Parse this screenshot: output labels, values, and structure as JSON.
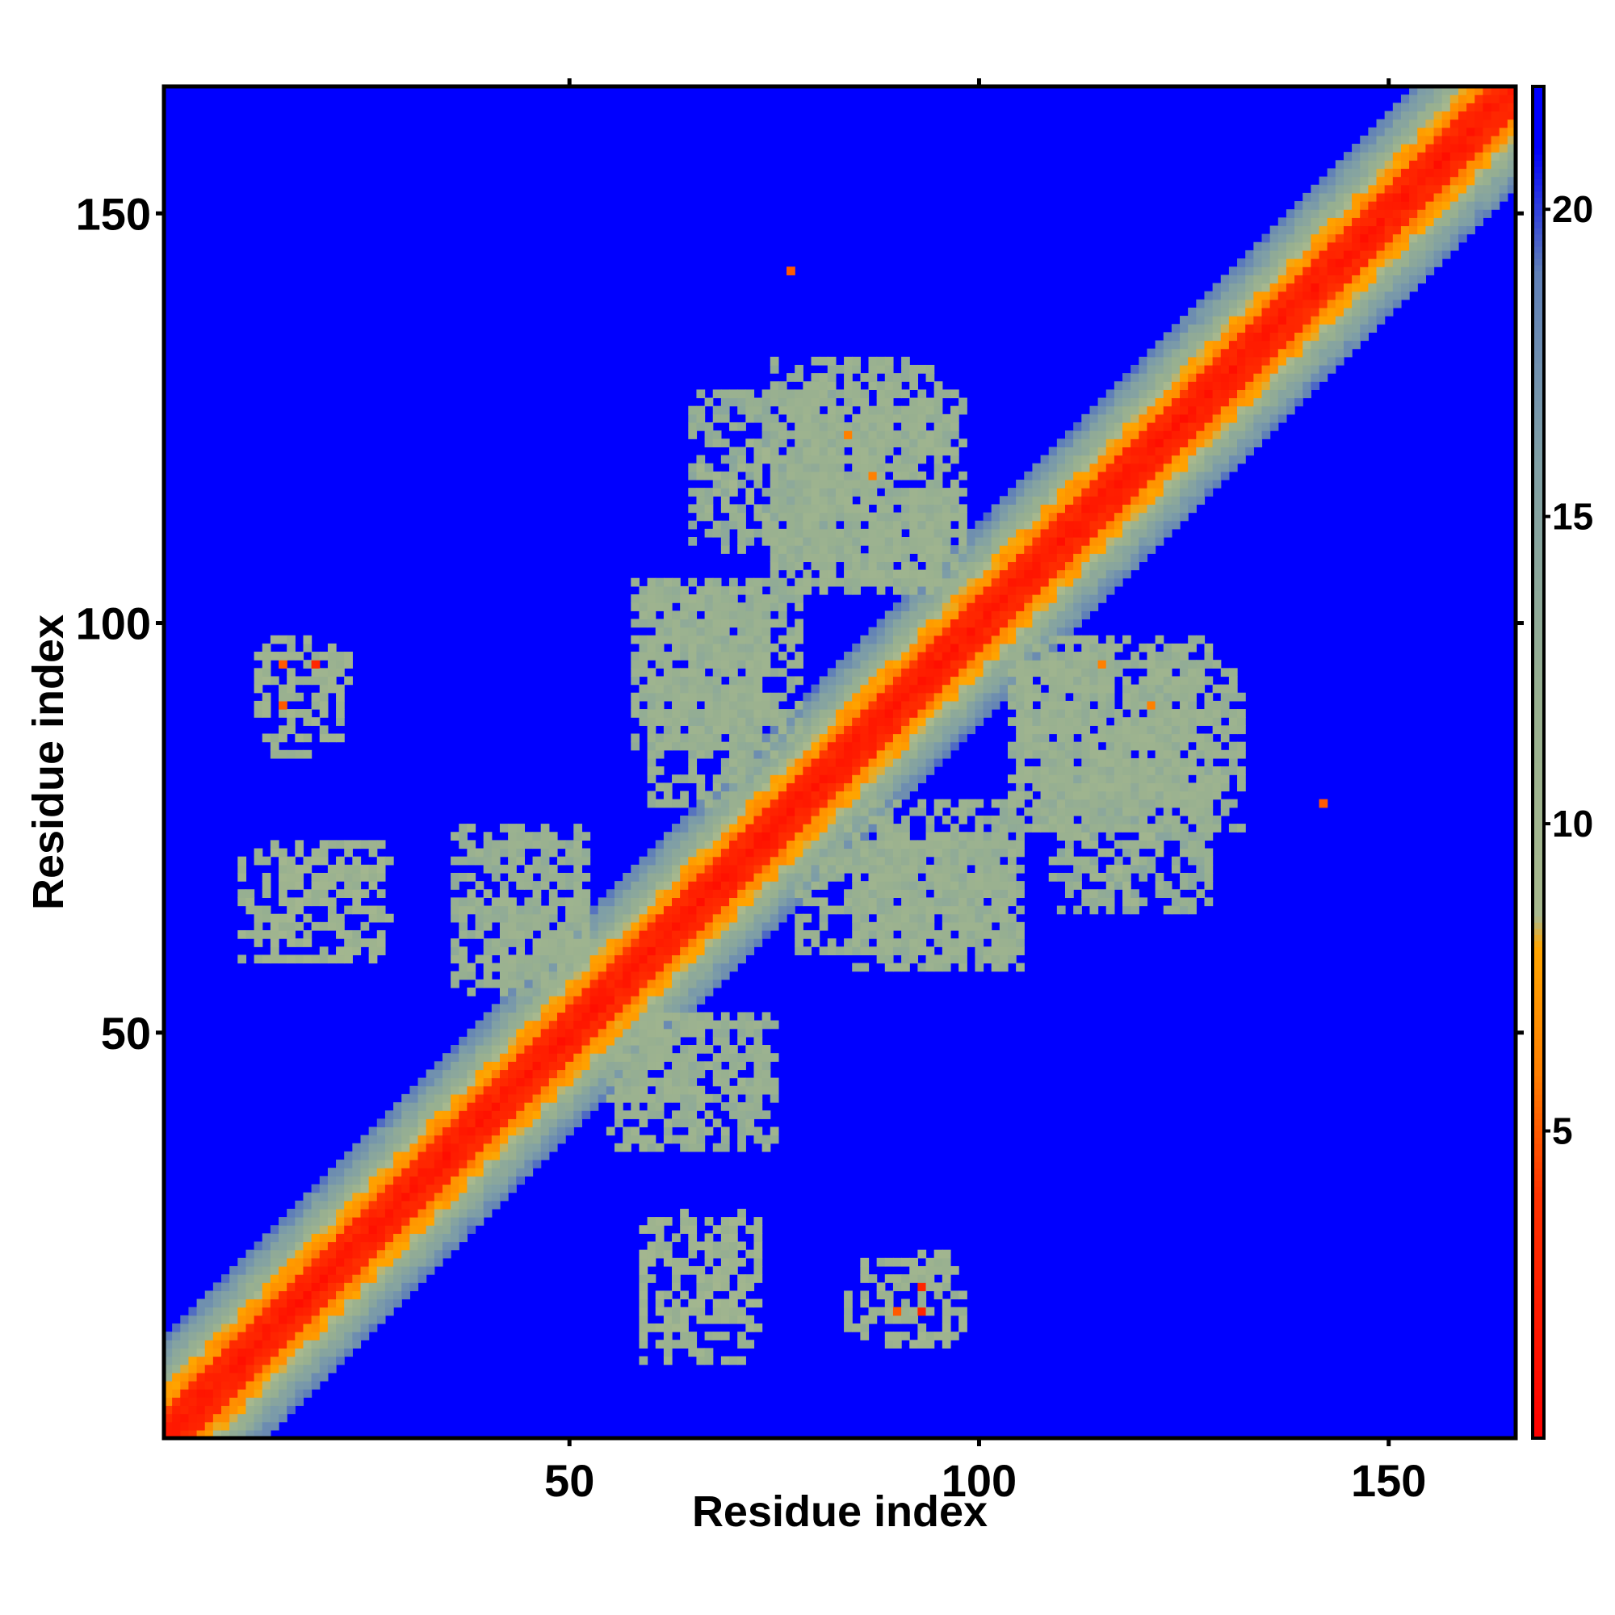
{
  "chart_data": {
    "type": "heatmap",
    "title": "",
    "xlabel": "Residue index",
    "ylabel": "Residue index",
    "xlim": [
      1,
      165
    ],
    "ylim": [
      1,
      165
    ],
    "x_ticks": [
      50,
      100,
      150
    ],
    "y_ticks": [
      50,
      100,
      150
    ],
    "colorbar": {
      "range": [
        0,
        22
      ],
      "ticks": [
        5,
        10,
        15,
        20
      ],
      "stops": [
        {
          "value": 0,
          "color": "#ff0000"
        },
        {
          "value": 4,
          "color": "#ff3300"
        },
        {
          "value": 6,
          "color": "#ff8000"
        },
        {
          "value": 8,
          "color": "#ffa500"
        },
        {
          "value": 8.5,
          "color": "#a8b98e"
        },
        {
          "value": 12,
          "color": "#98b090"
        },
        {
          "value": 16,
          "color": "#7f9fa6"
        },
        {
          "value": 19,
          "color": "#5f7fb8"
        },
        {
          "value": 21,
          "color": "#0000ff"
        }
      ]
    },
    "symmetric": true,
    "background_value": 21,
    "diagonal_band": {
      "core_width": 3,
      "orange_width": 6,
      "green_width": 12
    },
    "contact_regions": [
      {
        "x": [
          12,
          22
        ],
        "y": [
          88,
          98
        ],
        "value": 11,
        "density": 0.35
      },
      {
        "x": [
          10,
          28
        ],
        "y": [
          59,
          73
        ],
        "value": 11,
        "density": 0.4
      },
      {
        "x": [
          36,
          52
        ],
        "y": [
          55,
          75
        ],
        "value": 12,
        "density": 0.6
      },
      {
        "x": [
          58,
          74
        ],
        "y": [
          85,
          105
        ],
        "value": 12,
        "density": 0.7
      },
      {
        "x": [
          65,
          82
        ],
        "y": [
          109,
          128
        ],
        "value": 13,
        "density": 0.55
      },
      {
        "x": [
          75,
          95
        ],
        "y": [
          105,
          132
        ],
        "value": 12,
        "density": 0.65
      },
      {
        "x": [
          78,
          104
        ],
        "y": [
          60,
          78
        ],
        "value": 12,
        "density": 0.6
      },
      {
        "x": [
          104,
          128
        ],
        "y": [
          78,
          98
        ],
        "value": 12,
        "density": 0.6
      },
      {
        "x": [
          112,
          122
        ],
        "y": [
          66,
          74
        ],
        "value": 11,
        "density": 0.4
      },
      {
        "x": [
          56,
          74
        ],
        "y": [
          42,
          52
        ],
        "value": 12,
        "density": 0.55
      },
      {
        "x": [
          59,
          73
        ],
        "y": [
          14,
          27
        ],
        "value": 11,
        "density": 0.45
      },
      {
        "x": [
          84,
          96
        ],
        "y": [
          12,
          23
        ],
        "value": 11,
        "density": 0.4
      }
    ],
    "hotspots": [
      {
        "x": 77,
        "y": 143,
        "value": 5
      },
      {
        "x": 142,
        "y": 78,
        "value": 5
      },
      {
        "x": 15,
        "y": 95,
        "value": 5
      },
      {
        "x": 19,
        "y": 95,
        "value": 3
      },
      {
        "x": 15,
        "y": 90,
        "value": 5
      },
      {
        "x": 93,
        "y": 19,
        "value": 3
      },
      {
        "x": 90,
        "y": 16,
        "value": 5
      },
      {
        "x": 93,
        "y": 16,
        "value": 3
      },
      {
        "x": 84,
        "y": 123,
        "value": 6
      },
      {
        "x": 87,
        "y": 118,
        "value": 6
      },
      {
        "x": 115,
        "y": 95,
        "value": 6
      },
      {
        "x": 121,
        "y": 90,
        "value": 6
      }
    ]
  }
}
